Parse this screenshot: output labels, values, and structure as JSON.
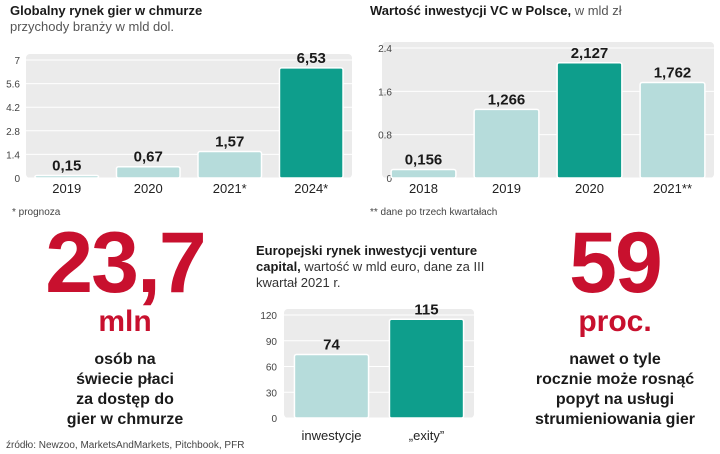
{
  "charts": {
    "cloud": {
      "title": "Globalny rynek gier w chmurze",
      "subtitle": "przychody branży w mld dol.",
      "footnote": "* prognoza"
    },
    "vc": {
      "title": "Wartość inwestycji VC w Polsce,",
      "subtitle": " w mld zł",
      "footnote": "** dane po trzech kwartałach"
    },
    "eu": {
      "title": "Europejski rynek inwestycji venture capital,",
      "subtitle": " wartość w mld euro, dane za III kwartał 2021 r."
    }
  },
  "stats": {
    "left": {
      "number": "23,7",
      "unit": "mln",
      "lines": [
        "osób na",
        "świecie płaci",
        "za dostęp do",
        "gier w chmurze"
      ]
    },
    "right": {
      "number": "59",
      "unit": "proc.",
      "lines": [
        "nawet o tyle",
        "rocznie może rosnąć",
        "popyt na usługi",
        "strumieniowania gier"
      ]
    }
  },
  "source": "źródło: Newzoo, MarketsAndMarkets, Pitchbook, PFR",
  "colors": {
    "accent_red": "#c8102e",
    "bar_light": "#b6dcdb",
    "bar_teal": "#0e9e8c",
    "panel_bg": "#ebebeb"
  },
  "chart_data": [
    {
      "type": "bar",
      "title": "Globalny rynek gier w chmurze",
      "subtitle": "przychody branży w mld dol.",
      "categories": [
        "2019",
        "2020",
        "2021*",
        "2024*"
      ],
      "values": [
        0.15,
        0.67,
        1.57,
        6.53
      ],
      "value_labels": [
        "0,15",
        "0,67",
        "1,57",
        "6,53"
      ],
      "yticks": [
        "0",
        "1.4",
        "2.8",
        "4.2",
        "5.6",
        "7"
      ],
      "ylim": [
        0,
        7
      ],
      "highlight_index": 3
    },
    {
      "type": "bar",
      "title": "Wartość inwestycji VC w Polsce",
      "subtitle": "w mld zł",
      "categories": [
        "2018",
        "2019",
        "2020",
        "2021**"
      ],
      "values": [
        0.156,
        1.266,
        2.127,
        1.762
      ],
      "value_labels": [
        "0,156",
        "1,266",
        "2,127",
        "1,762"
      ],
      "yticks": [
        "0",
        "0.8",
        "1.6",
        "2.4"
      ],
      "ylim": [
        0,
        2.4
      ],
      "highlight_index": 2
    },
    {
      "type": "bar",
      "title": "Europejski rynek inwestycji venture capital",
      "subtitle": "wartość w mld euro, dane za III kwartał 2021 r.",
      "categories": [
        "inwestycje",
        "„exity”"
      ],
      "values": [
        74,
        115
      ],
      "value_labels": [
        "74",
        "115"
      ],
      "yticks": [
        "0",
        "30",
        "60",
        "90",
        "120"
      ],
      "ylim": [
        0,
        120
      ],
      "highlight_index": 1
    }
  ]
}
